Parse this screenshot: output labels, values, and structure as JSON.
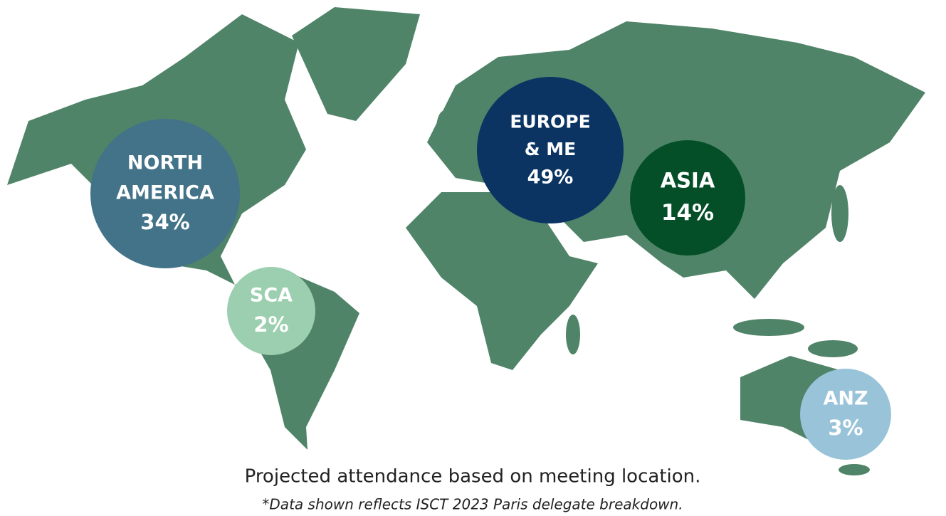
{
  "regions": [
    {
      "label": [
        "NORTH",
        "AMERICA"
      ],
      "share": "34%"
    },
    {
      "label": [
        "SCA"
      ],
      "share": "2%"
    },
    {
      "label": [
        "EUROPE",
        "& ME"
      ],
      "share": "49%"
    },
    {
      "label": [
        "ASIA"
      ],
      "share": "14%"
    },
    {
      "label": [
        "ANZ"
      ],
      "share": "3%"
    }
  ],
  "caption": "Projected attendance based on meeting location.",
  "note": "*Data shown reflects ISCT 2023 Paris delegate breakdown."
}
